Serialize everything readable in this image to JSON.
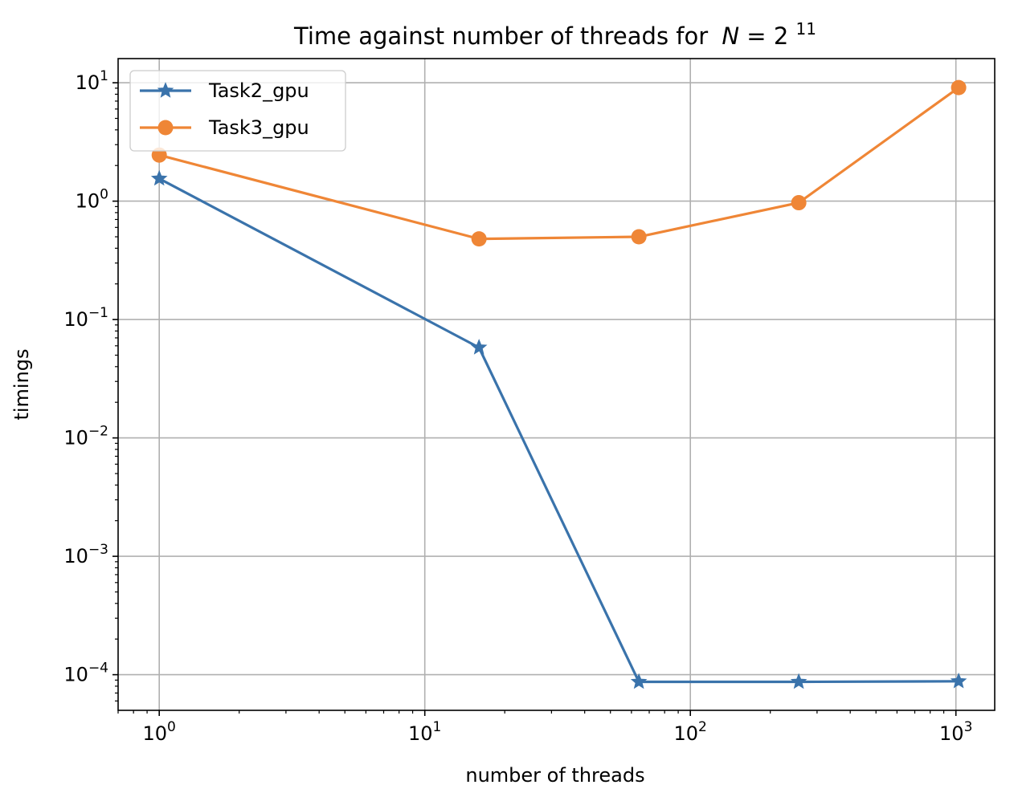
{
  "chart_data": {
    "type": "line",
    "title": "Time against number of threads for",
    "title_math": {
      "var": "N",
      "eq": " = 2",
      "exp": "11"
    },
    "xlabel": "number of threads",
    "ylabel": "timings",
    "x_scale": "log",
    "y_scale": "log",
    "xlim": [
      0.7,
      1400
    ],
    "ylim": [
      5e-05,
      16
    ],
    "grid": true,
    "legend_position": "top-left",
    "x_ticks": [
      {
        "value": 1,
        "base": "10",
        "exp": "0"
      },
      {
        "value": 10,
        "base": "10",
        "exp": "1"
      },
      {
        "value": 100,
        "base": "10",
        "exp": "2"
      },
      {
        "value": 1000,
        "base": "10",
        "exp": "3"
      }
    ],
    "y_ticks": [
      {
        "value": 10,
        "base": "10",
        "exp": "1"
      },
      {
        "value": 1,
        "base": "10",
        "exp": "0"
      },
      {
        "value": 0.1,
        "base": "10",
        "exp": "−1"
      },
      {
        "value": 0.01,
        "base": "10",
        "exp": "−2"
      },
      {
        "value": 0.001,
        "base": "10",
        "exp": "−3"
      },
      {
        "value": 0.0001,
        "base": "10",
        "exp": "−4"
      }
    ],
    "series": [
      {
        "name": "Task2_gpu",
        "color": "#3a73ab",
        "marker": "star",
        "x": [
          1,
          16,
          64,
          256,
          1024
        ],
        "y": [
          1.55,
          0.058,
          8.7e-05,
          8.7e-05,
          8.8e-05
        ]
      },
      {
        "name": "Task3_gpu",
        "color": "#ef8636",
        "marker": "circle",
        "x": [
          1,
          16,
          64,
          256,
          1024
        ],
        "y": [
          2.45,
          0.48,
          0.5,
          0.97,
          9.1
        ]
      }
    ]
  }
}
